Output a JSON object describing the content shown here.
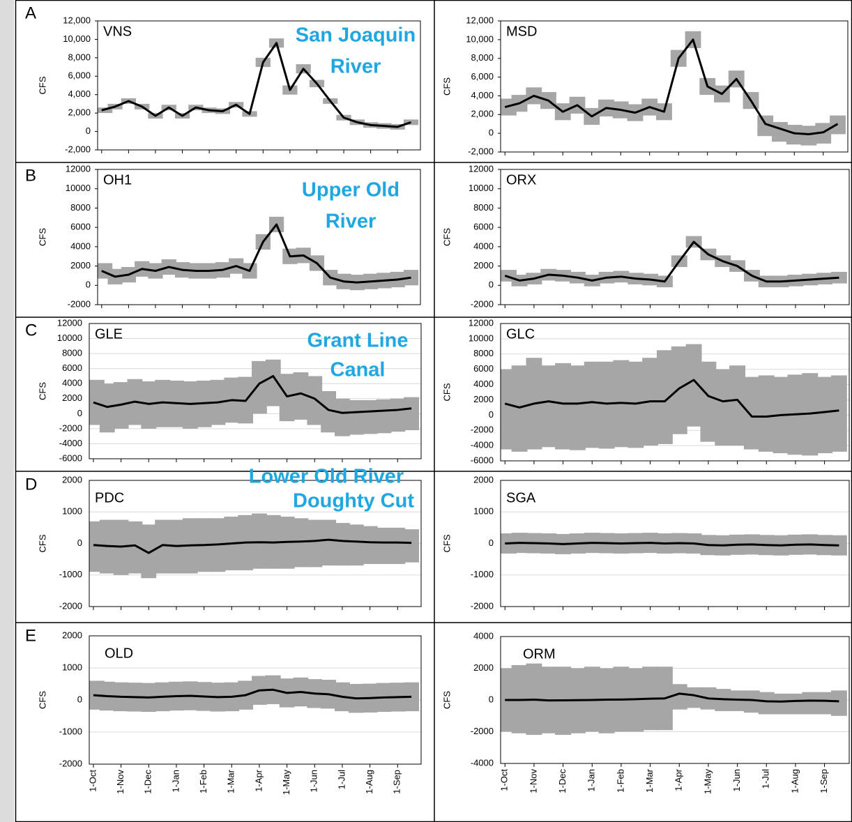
{
  "chart_data": [
    {
      "type": "line",
      "panel_label": "A",
      "station": "VNS",
      "region": [
        "San Joaquin",
        "River"
      ],
      "ylabel": "CFS",
      "grid": false,
      "color": "#000000",
      "band_color": "#a6a6a6",
      "ylim": [
        -2000,
        12000
      ],
      "yticks": [
        {
          "value": -2000,
          "label": "-2,000"
        },
        0,
        {
          "value": 2000,
          "label": "2,000"
        },
        {
          "value": 4000,
          "label": "4,000"
        },
        {
          "value": 6000,
          "label": "6,000"
        },
        {
          "value": 8000,
          "label": "8,000"
        },
        {
          "value": 10000,
          "label": "10,000"
        },
        {
          "value": 12000,
          "label": "12,000"
        }
      ],
      "categories": [
        "1-Oct",
        null,
        "1-Nov",
        null,
        "1-Dec",
        null,
        "1-Jan",
        null,
        "1-Feb",
        null,
        "1-Mar",
        null,
        "1-Apr",
        null,
        "1-May",
        null,
        "1-Jun",
        null,
        "1-Jul",
        null,
        "1-Aug",
        null,
        "1-Sep",
        null
      ],
      "values": [
        2300,
        2700,
        3300,
        2700,
        1700,
        2600,
        1700,
        2600,
        2300,
        2200,
        2900,
        1900,
        7500,
        9600,
        4500,
        6800,
        5200,
        3300,
        1500,
        1000,
        700,
        600,
        500,
        1000
      ],
      "band_low": [
        2000,
        2400,
        3000,
        2400,
        1400,
        2300,
        1400,
        2300,
        2000,
        1900,
        2600,
        1600,
        7000,
        9100,
        4000,
        6300,
        4800,
        3000,
        1200,
        700,
        400,
        300,
        200,
        700
      ],
      "band_high": [
        2600,
        3000,
        3600,
        3000,
        2000,
        2900,
        2000,
        2900,
        2600,
        2500,
        3200,
        2200,
        8000,
        10100,
        5000,
        7300,
        5600,
        3600,
        1800,
        1300,
        1000,
        900,
        800,
        1300
      ]
    },
    {
      "type": "line",
      "station": "MSD",
      "ylabel": "CFS",
      "grid": false,
      "color": "#000000",
      "band_color": "#a6a6a6",
      "ylim": [
        -2000,
        12000
      ],
      "yticks": [
        {
          "value": -2000,
          "label": "-2,000"
        },
        0,
        {
          "value": 2000,
          "label": "2,000"
        },
        {
          "value": 4000,
          "label": "4,000"
        },
        {
          "value": 6000,
          "label": "6,000"
        },
        {
          "value": 8000,
          "label": "8,000"
        },
        {
          "value": 10000,
          "label": "10,000"
        },
        {
          "value": 12000,
          "label": "12,000"
        }
      ],
      "categories": [
        "1-Oct",
        null,
        "1-Nov",
        null,
        "1-Dec",
        null,
        "1-Jan",
        null,
        "1-Feb",
        null,
        "1-Mar",
        null,
        "1-Apr",
        null,
        "1-May",
        null,
        "1-Jun",
        null,
        "1-Jul",
        null,
        "1-Aug",
        null,
        "1-Sep",
        null
      ],
      "values": [
        2800,
        3200,
        4000,
        3500,
        2300,
        3000,
        1800,
        2700,
        2500,
        2200,
        2800,
        2300,
        8000,
        10000,
        5000,
        4200,
        5800,
        3500,
        1000,
        500,
        0,
        -100,
        100,
        1000
      ],
      "band_low": [
        1900,
        2300,
        3100,
        2600,
        1400,
        2100,
        900,
        1800,
        1600,
        1300,
        1900,
        1400,
        7100,
        9100,
        4100,
        3300,
        4900,
        2600,
        -300,
        -900,
        -1200,
        -1300,
        -1100,
        -100
      ],
      "band_high": [
        3700,
        4100,
        4900,
        4400,
        3200,
        3900,
        2700,
        3600,
        3400,
        3100,
        3700,
        3200,
        8900,
        10900,
        5900,
        5100,
        6700,
        4400,
        1900,
        1200,
        900,
        800,
        1100,
        1900
      ]
    },
    {
      "type": "line",
      "panel_label": "B",
      "station": "OH1",
      "region": [
        "Upper Old",
        "River"
      ],
      "ylabel": "CFS",
      "grid": false,
      "color": "#000000",
      "band_color": "#a6a6a6",
      "ylim": [
        -2000,
        12000
      ],
      "yticks": [
        -2000,
        0,
        2000,
        4000,
        6000,
        8000,
        10000,
        12000
      ],
      "categories": [
        "1-Oct",
        null,
        "1-Nov",
        null,
        "1-Dec",
        null,
        "1-Jan",
        null,
        "1-Feb",
        null,
        "1-Mar",
        null,
        "1-Apr",
        null,
        "1-May",
        null,
        "1-Jun",
        null,
        "1-Jul",
        null,
        "1-Aug",
        null,
        "1-Sep",
        null
      ],
      "values": [
        1500,
        900,
        1100,
        1700,
        1500,
        1900,
        1600,
        1500,
        1500,
        1600,
        2000,
        1500,
        4500,
        6300,
        3000,
        3100,
        2300,
        800,
        400,
        300,
        400,
        500,
        600,
        800
      ],
      "band_low": [
        700,
        100,
        300,
        900,
        700,
        1100,
        800,
        700,
        700,
        800,
        1200,
        700,
        3700,
        5500,
        2200,
        2300,
        1500,
        0,
        -400,
        -500,
        -400,
        -300,
        -200,
        0
      ],
      "band_high": [
        2300,
        1700,
        1900,
        2500,
        2300,
        2700,
        2400,
        2300,
        2300,
        2400,
        2800,
        2300,
        5300,
        7100,
        3800,
        3900,
        3100,
        1600,
        1200,
        1100,
        1200,
        1300,
        1400,
        1600
      ]
    },
    {
      "type": "line",
      "station": "ORX",
      "ylabel": "CFS",
      "grid": false,
      "color": "#000000",
      "band_color": "#a6a6a6",
      "ylim": [
        -2000,
        12000
      ],
      "yticks": [
        -2000,
        0,
        2000,
        4000,
        6000,
        8000,
        10000,
        12000
      ],
      "categories": [
        "1-Oct",
        null,
        "1-Nov",
        null,
        "1-Dec",
        null,
        "1-Jan",
        null,
        "1-Feb",
        null,
        "1-Mar",
        null,
        "1-Apr",
        null,
        "1-May",
        null,
        "1-Jun",
        null,
        "1-Jul",
        null,
        "1-Aug",
        null,
        "1-Sep",
        null
      ],
      "values": [
        1000,
        500,
        700,
        1100,
        1000,
        800,
        500,
        800,
        900,
        700,
        600,
        400,
        2500,
        4500,
        3200,
        2500,
        2000,
        1000,
        400,
        400,
        500,
        600,
        700,
        800
      ],
      "band_low": [
        400,
        -100,
        100,
        500,
        400,
        200,
        -100,
        200,
        300,
        100,
        0,
        -200,
        1900,
        3900,
        2600,
        1900,
        1400,
        400,
        -200,
        -200,
        -100,
        0,
        100,
        200
      ],
      "band_high": [
        1600,
        1100,
        1300,
        1700,
        1600,
        1400,
        1100,
        1400,
        1500,
        1300,
        1200,
        1000,
        3100,
        5100,
        3800,
        3100,
        2600,
        1600,
        1000,
        1000,
        1100,
        1200,
        1300,
        1400
      ]
    },
    {
      "type": "line",
      "panel_label": "C",
      "station": "GLE",
      "region": [
        "Grant Line",
        "Canal"
      ],
      "ylabel": "CFS",
      "grid": true,
      "color": "#000000",
      "band_color": "#a6a6a6",
      "ylim": [
        -6000,
        12000
      ],
      "yticks": [
        -6000,
        -4000,
        -2000,
        0,
        2000,
        4000,
        6000,
        8000,
        10000,
        12000
      ],
      "categories": [
        "1-Oct",
        null,
        "1-Nov",
        null,
        "1-Dec",
        null,
        "1-Jan",
        null,
        "1-Feb",
        null,
        "1-Mar",
        null,
        "1-Apr",
        null,
        "1-May",
        null,
        "1-Jun",
        null,
        "1-Jul",
        null,
        "1-Aug",
        null,
        "1-Sep",
        null
      ],
      "values": [
        1500,
        900,
        1200,
        1600,
        1300,
        1500,
        1400,
        1300,
        1400,
        1500,
        1800,
        1700,
        4000,
        5000,
        2300,
        2700,
        2000,
        500,
        100,
        200,
        300,
        400,
        500,
        700
      ],
      "band_low": [
        -1500,
        -2500,
        -2000,
        -1500,
        -2000,
        -1800,
        -1800,
        -2000,
        -1800,
        -1500,
        -1200,
        -1300,
        0,
        1000,
        -1000,
        -800,
        -1500,
        -2500,
        -3000,
        -2800,
        -2700,
        -2600,
        -2400,
        -2200
      ],
      "band_high": [
        4500,
        4000,
        4200,
        4600,
        4300,
        4500,
        4400,
        4300,
        4400,
        4500,
        4800,
        4900,
        7000,
        7200,
        5300,
        5500,
        5000,
        3000,
        2000,
        1800,
        1800,
        1900,
        2000,
        2200
      ]
    },
    {
      "type": "line",
      "station": "GLC",
      "ylabel": "CFS",
      "grid": true,
      "color": "#000000",
      "band_color": "#a6a6a6",
      "ylim": [
        -6000,
        12000
      ],
      "yticks": [
        -6000,
        -4000,
        -2000,
        0,
        2000,
        4000,
        6000,
        8000,
        10000,
        12000
      ],
      "categories": [
        "1-Oct",
        null,
        "1-Nov",
        null,
        "1-Dec",
        null,
        "1-Jan",
        null,
        "1-Feb",
        null,
        "1-Mar",
        null,
        "1-Apr",
        null,
        "1-May",
        null,
        "1-Jun",
        null,
        "1-Jul",
        null,
        "1-Aug",
        null,
        "1-Sep",
        null
      ],
      "values": [
        1500,
        1000,
        1500,
        1800,
        1500,
        1500,
        1700,
        1500,
        1600,
        1500,
        1800,
        1800,
        3500,
        4600,
        2500,
        1800,
        2000,
        -200,
        -200,
        0,
        100,
        200,
        400,
        600
      ],
      "band_low": [
        -4500,
        -4800,
        -4500,
        -4200,
        -4500,
        -4600,
        -4300,
        -4400,
        -4200,
        -4300,
        -4000,
        -3800,
        -2500,
        -1500,
        -3500,
        -4000,
        -4000,
        -4500,
        -4800,
        -5000,
        -5200,
        -5300,
        -5000,
        -4800
      ],
      "band_high": [
        6000,
        6500,
        7500,
        6500,
        6800,
        6500,
        7000,
        7000,
        7200,
        7000,
        7500,
        8500,
        9000,
        9300,
        7000,
        6000,
        6500,
        5000,
        5200,
        5000,
        5300,
        5500,
        5000,
        5200
      ]
    },
    {
      "type": "line",
      "panel_label": "D",
      "station": "PDC",
      "region": [
        "Doughty Cut"
      ],
      "ylabel": "CFS",
      "grid": true,
      "color": "#000000",
      "band_color": "#a6a6a6",
      "ylim": [
        -2000,
        2000
      ],
      "yticks": [
        -2000,
        -1000,
        0,
        1000,
        2000
      ],
      "categories": [
        "1-Oct",
        null,
        "1-Nov",
        null,
        "1-Dec",
        null,
        "1-Jan",
        null,
        "1-Feb",
        null,
        "1-Mar",
        null,
        "1-Apr",
        null,
        "1-May",
        null,
        "1-Jun",
        null,
        "1-Jul",
        null,
        "1-Aug",
        null,
        "1-Sep",
        null
      ],
      "values": [
        -50,
        -80,
        -100,
        -60,
        -300,
        -50,
        -80,
        -60,
        -50,
        -30,
        0,
        30,
        40,
        30,
        50,
        60,
        80,
        120,
        80,
        60,
        40,
        30,
        30,
        20
      ],
      "band_low": [
        -900,
        -950,
        -1000,
        -950,
        -1100,
        -950,
        -950,
        -950,
        -900,
        -900,
        -850,
        -850,
        -800,
        -800,
        -800,
        -750,
        -750,
        -700,
        -700,
        -700,
        -650,
        -650,
        -650,
        -600
      ],
      "band_high": [
        700,
        750,
        750,
        700,
        600,
        750,
        750,
        800,
        800,
        800,
        850,
        900,
        950,
        900,
        850,
        800,
        750,
        750,
        650,
        600,
        550,
        500,
        500,
        450
      ]
    },
    {
      "type": "line",
      "station": "SGA",
      "ylabel": "CFS",
      "grid": true,
      "color": "#000000",
      "band_color": "#a6a6a6",
      "ylim": [
        -2000,
        2000
      ],
      "yticks": [
        -2000,
        -1000,
        0,
        1000,
        2000
      ],
      "categories": [
        "1-Oct",
        null,
        "1-Nov",
        null,
        "1-Dec",
        null,
        "1-Jan",
        null,
        "1-Feb",
        null,
        "1-Mar",
        null,
        "1-Apr",
        null,
        "1-May",
        null,
        "1-Jun",
        null,
        "1-Jul",
        null,
        "1-Aug",
        null,
        "1-Sep",
        null
      ],
      "values": [
        0,
        20,
        10,
        0,
        -20,
        0,
        20,
        10,
        0,
        10,
        20,
        0,
        10,
        0,
        -50,
        -60,
        -40,
        -30,
        -50,
        -60,
        -40,
        -30,
        -50,
        -60
      ],
      "band_low": [
        -320,
        -300,
        -310,
        -320,
        -340,
        -320,
        -300,
        -310,
        -320,
        -310,
        -300,
        -320,
        -310,
        -320,
        -370,
        -380,
        -360,
        -350,
        -370,
        -380,
        -360,
        -350,
        -370,
        -380
      ],
      "band_high": [
        320,
        340,
        330,
        320,
        300,
        320,
        340,
        330,
        320,
        330,
        340,
        320,
        330,
        320,
        270,
        260,
        280,
        290,
        270,
        260,
        280,
        290,
        270,
        260
      ]
    },
    {
      "type": "line",
      "panel_label": "E",
      "station": "OLD",
      "region": [
        "Lower Old River"
      ],
      "ylabel": "CFS",
      "grid": true,
      "color": "#000000",
      "band_color": "#a6a6a6",
      "ylim": [
        -2000,
        2000
      ],
      "yticks": [
        -2000,
        -1000,
        0,
        1000,
        2000
      ],
      "categories": [
        "1-Oct",
        null,
        "1-Nov",
        null,
        "1-Dec",
        null,
        "1-Jan",
        null,
        "1-Feb",
        null,
        "1-Mar",
        null,
        "1-Apr",
        null,
        "1-May",
        null,
        "1-Jun",
        null,
        "1-Jul",
        null,
        "1-Aug",
        null,
        "1-Sep",
        null
      ],
      "values": [
        150,
        120,
        100,
        90,
        80,
        100,
        120,
        130,
        110,
        90,
        100,
        150,
        300,
        320,
        220,
        250,
        200,
        180,
        100,
        50,
        60,
        80,
        90,
        100
      ],
      "band_low": [
        -300,
        -330,
        -350,
        -360,
        -370,
        -350,
        -330,
        -320,
        -340,
        -360,
        -350,
        -300,
        -150,
        -130,
        -230,
        -200,
        -250,
        -270,
        -350,
        -400,
        -390,
        -370,
        -360,
        -350
      ],
      "band_high": [
        600,
        570,
        550,
        540,
        530,
        550,
        570,
        580,
        560,
        540,
        550,
        600,
        750,
        770,
        670,
        700,
        650,
        630,
        550,
        500,
        510,
        530,
        540,
        550
      ]
    },
    {
      "type": "line",
      "station": "ORM",
      "ylabel": "CFS",
      "grid": true,
      "color": "#000000",
      "band_color": "#a6a6a6",
      "ylim": [
        -4000,
        4000
      ],
      "yticks": [
        -4000,
        -2000,
        0,
        2000,
        4000
      ],
      "categories": [
        "1-Oct",
        null,
        "1-Nov",
        null,
        "1-Dec",
        null,
        "1-Jan",
        null,
        "1-Feb",
        null,
        "1-Mar",
        null,
        "1-Apr",
        null,
        "1-May",
        null,
        "1-Jun",
        null,
        "1-Jul",
        null,
        "1-Aug",
        null,
        "1-Sep",
        null
      ],
      "values": [
        0,
        0,
        20,
        -30,
        -20,
        -10,
        0,
        20,
        30,
        50,
        80,
        100,
        400,
        300,
        100,
        50,
        20,
        0,
        -80,
        -100,
        -60,
        -40,
        -50,
        -80
      ],
      "band_low": [
        -2000,
        -2100,
        -2200,
        -2100,
        -2200,
        -2100,
        -2000,
        -2100,
        -2000,
        -2000,
        -1900,
        -1900,
        -600,
        -500,
        -600,
        -700,
        -700,
        -800,
        -900,
        -900,
        -900,
        -900,
        -900,
        -1000
      ],
      "band_high": [
        2000,
        2200,
        2300,
        2100,
        2100,
        2000,
        2100,
        2000,
        2100,
        2000,
        2100,
        2100,
        1000,
        800,
        800,
        700,
        600,
        600,
        500,
        400,
        400,
        500,
        500,
        600
      ]
    }
  ]
}
